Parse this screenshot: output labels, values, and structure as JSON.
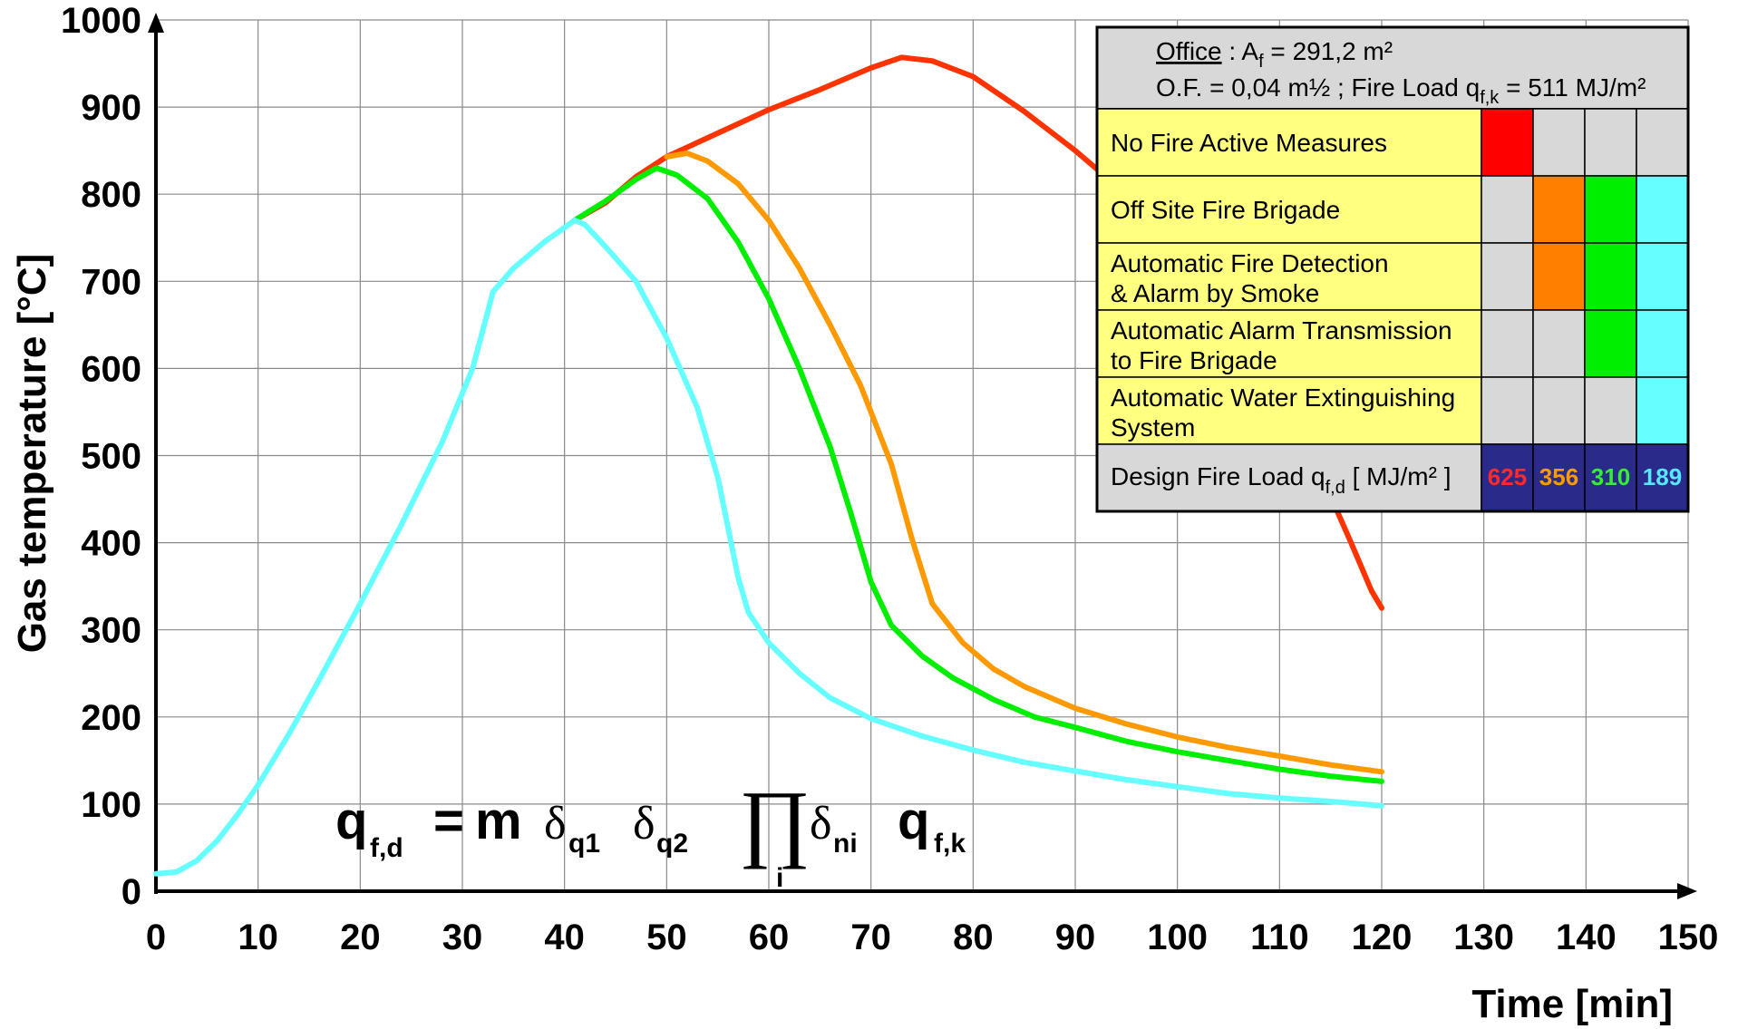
{
  "chart_data": {
    "type": "line",
    "xlabel": "Time [min]",
    "ylabel": "Gas temperature [°C]",
    "xlim": [
      0,
      150
    ],
    "ylim": [
      0,
      1000
    ],
    "xticks": [
      0,
      10,
      20,
      30,
      40,
      50,
      60,
      70,
      80,
      90,
      100,
      110,
      120,
      130,
      140,
      150
    ],
    "yticks": [
      0,
      100,
      200,
      300,
      400,
      500,
      600,
      700,
      800,
      900,
      1000
    ],
    "grid": true,
    "common_rise": [
      [
        0,
        20
      ],
      [
        2,
        22
      ],
      [
        4,
        35
      ],
      [
        6,
        58
      ],
      [
        8,
        88
      ],
      [
        10,
        122
      ],
      [
        13,
        180
      ],
      [
        16,
        243
      ],
      [
        20,
        330
      ],
      [
        24,
        420
      ],
      [
        28,
        515
      ],
      [
        31,
        600
      ],
      [
        33,
        688
      ],
      [
        35,
        715
      ],
      [
        38,
        745
      ],
      [
        41,
        770
      ]
    ],
    "series": [
      {
        "color": "#ff3300",
        "values": [
          [
            41,
            770
          ],
          [
            44,
            790
          ],
          [
            47,
            820
          ],
          [
            50,
            843
          ],
          [
            55,
            870
          ],
          [
            60,
            897
          ],
          [
            65,
            920
          ],
          [
            70,
            945
          ],
          [
            73,
            957
          ],
          [
            76,
            953
          ],
          [
            80,
            935
          ],
          [
            85,
            895
          ],
          [
            90,
            850
          ],
          [
            95,
            800
          ],
          [
            100,
            735
          ],
          [
            105,
            660
          ],
          [
            110,
            570
          ],
          [
            114,
            480
          ],
          [
            117,
            400
          ],
          [
            119,
            345
          ],
          [
            120,
            325
          ]
        ]
      },
      {
        "color": "#ff9900",
        "values": [
          [
            50,
            843
          ],
          [
            52,
            847
          ],
          [
            54,
            838
          ],
          [
            57,
            812
          ],
          [
            60,
            770
          ],
          [
            63,
            715
          ],
          [
            66,
            650
          ],
          [
            69,
            580
          ],
          [
            72,
            490
          ],
          [
            74,
            405
          ],
          [
            76,
            330
          ],
          [
            79,
            285
          ],
          [
            82,
            255
          ],
          [
            85,
            235
          ],
          [
            90,
            210
          ],
          [
            95,
            192
          ],
          [
            100,
            177
          ],
          [
            105,
            165
          ],
          [
            110,
            155
          ],
          [
            115,
            145
          ],
          [
            120,
            137
          ]
        ]
      },
      {
        "color": "#00ee00",
        "values": [
          [
            41,
            770
          ],
          [
            44,
            792
          ],
          [
            47,
            817
          ],
          [
            49,
            830
          ],
          [
            51,
            822
          ],
          [
            54,
            795
          ],
          [
            57,
            745
          ],
          [
            60,
            680
          ],
          [
            63,
            600
          ],
          [
            66,
            510
          ],
          [
            68,
            435
          ],
          [
            70,
            355
          ],
          [
            72,
            305
          ],
          [
            75,
            270
          ],
          [
            78,
            245
          ],
          [
            82,
            220
          ],
          [
            86,
            200
          ],
          [
            90,
            188
          ],
          [
            95,
            172
          ],
          [
            100,
            160
          ],
          [
            105,
            150
          ],
          [
            110,
            140
          ],
          [
            115,
            132
          ],
          [
            120,
            126
          ]
        ]
      },
      {
        "color": "#66ffff",
        "values": [
          [
            41,
            770
          ],
          [
            42,
            765
          ],
          [
            44,
            740
          ],
          [
            47,
            700
          ],
          [
            50,
            635
          ],
          [
            53,
            555
          ],
          [
            55,
            475
          ],
          [
            57,
            360
          ],
          [
            58,
            320
          ],
          [
            60,
            285
          ],
          [
            63,
            250
          ],
          [
            66,
            222
          ],
          [
            70,
            198
          ],
          [
            75,
            178
          ],
          [
            80,
            162
          ],
          [
            85,
            148
          ],
          [
            90,
            138
          ],
          [
            95,
            128
          ],
          [
            100,
            120
          ],
          [
            105,
            112
          ],
          [
            110,
            107
          ],
          [
            115,
            103
          ],
          [
            120,
            98
          ]
        ]
      }
    ]
  },
  "formula": {
    "q": "q",
    "fd_sub": "f,d",
    "eq": "=",
    "m": "m",
    "delta": "δ",
    "q1_sub": "q1",
    "q2_sub": "q2",
    "prod": "∏",
    "prod_sub": "i",
    "ni_sub": "ni",
    "fk_sub": "f,k"
  },
  "legend": {
    "office_label": "Office",
    "area_prefix": " : A",
    "area_sub": "f",
    "area_value": " = 291,2 m²",
    "of_text": "O.F. = 0,04 m½   ;  Fire Load q",
    "fireload_sub": "f,k",
    "fireload_value": " = 511 MJ/m²",
    "rows": [
      {
        "line1": "No Fire Active Measures",
        "line2": "",
        "cells": [
          "#ff0000",
          "#d8d8d8",
          "#d8d8d8",
          "#d8d8d8"
        ]
      },
      {
        "line1": "Off Site Fire Brigade",
        "line2": "",
        "cells": [
          "#d8d8d8",
          "#ff8000",
          "#00ee00",
          "#66ffff"
        ]
      },
      {
        "line1": "Automatic Fire Detection",
        "line2": "& Alarm by Smoke",
        "cells": [
          "#d8d8d8",
          "#ff8000",
          "#00ee00",
          "#66ffff"
        ]
      },
      {
        "line1": "Automatic Alarm Transmission",
        "line2": "to Fire Brigade",
        "cells": [
          "#d8d8d8",
          "#d8d8d8",
          "#00ee00",
          "#66ffff"
        ]
      },
      {
        "line1": "Automatic Water Extinguishing",
        "line2": "System",
        "cells": [
          "#d8d8d8",
          "#d8d8d8",
          "#d8d8d8",
          "#66ffff"
        ]
      }
    ],
    "design_prefix": "Design Fire Load  q",
    "design_sub": "f,d",
    "design_suffix": "  [ MJ/m² ]",
    "design_values": [
      {
        "value": "625",
        "color": "#ff2a2a"
      },
      {
        "value": "356",
        "color": "#ff9900"
      },
      {
        "value": "310",
        "color": "#33ee33"
      },
      {
        "value": "189",
        "color": "#55e8ff"
      }
    ],
    "colors": {
      "header_bg": "#d8d8d8",
      "label_bg": "#ffff80",
      "design_cell_bg": "#2a2a8a"
    }
  }
}
